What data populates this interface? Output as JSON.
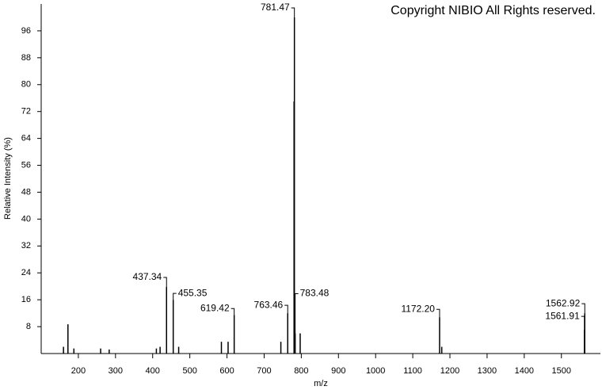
{
  "chart_data": {
    "type": "stem",
    "copyright": "Copyright NIBIO All Rights reserved.",
    "ylabel": "Relative Intensity (%)",
    "xlabel": "m/z",
    "xlim": [
      100,
      1605
    ],
    "xticks": [
      200,
      300,
      400,
      500,
      600,
      700,
      800,
      900,
      1000,
      1100,
      1200,
      1300,
      1400,
      1500
    ],
    "ylim": [
      0,
      104
    ],
    "yticks": [
      8,
      16,
      24,
      32,
      40,
      48,
      56,
      64,
      72,
      80,
      88,
      96
    ],
    "color": "#000000",
    "x": [
      160,
      172,
      188,
      260,
      283,
      410,
      420,
      437.34,
      455.35,
      470,
      585,
      603,
      619.42,
      745,
      763.46,
      780.5,
      781.47,
      783.48,
      797,
      1172.2,
      1178,
      1561.91,
      1562.92
    ],
    "values": [
      2,
      8.7,
      1.5,
      1.5,
      1.2,
      1.5,
      2,
      19.8,
      16,
      2,
      3.5,
      3.5,
      11.5,
      3.5,
      12,
      75,
      100,
      6,
      6,
      10.8,
      2,
      7,
      12
    ],
    "annotations": [
      {
        "text": "437.34",
        "x": 437.34,
        "y": 19.8
      },
      {
        "text": "455.35",
        "x": 455.35,
        "y": 16
      },
      {
        "text": "619.42",
        "x": 619.42,
        "y": 11.5
      },
      {
        "text": "763.46",
        "x": 763.46,
        "y": 12
      },
      {
        "text": "781.47",
        "x": 781.47,
        "y": 100
      },
      {
        "text": "783.48",
        "x": 783.48,
        "y": 6
      },
      {
        "text": "1172.20",
        "x": 1172.2,
        "y": 10.8
      },
      {
        "text": "1562.92",
        "x": 1562.92,
        "y": 12
      },
      {
        "text": "1561.91",
        "x": 1561.91,
        "y": 7
      }
    ]
  }
}
